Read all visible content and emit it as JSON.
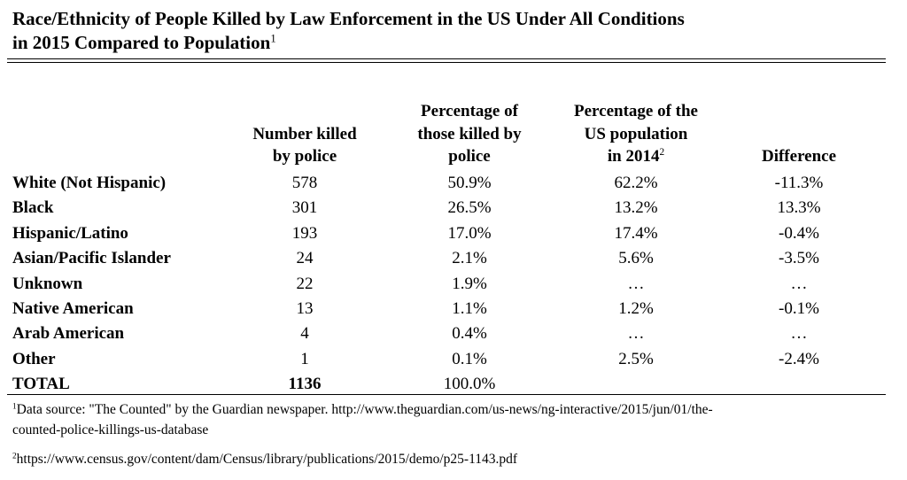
{
  "title": {
    "lines": [
      "Race/Ethnicity of People Killed by Law Enforcement in the US Under All Conditions",
      "in 2015 Compared to Population"
    ],
    "note": "1"
  },
  "table": {
    "header": [
      {
        "lines": [
          "Number killed",
          "by police"
        ]
      },
      {
        "lines": [
          "Percentage of",
          "those killed by",
          "police"
        ]
      },
      {
        "lines": [
          "Percentage of the",
          "US population",
          "in 2014"
        ],
        "note": "2"
      },
      {
        "lines": [
          "Difference"
        ]
      }
    ],
    "rows": [
      [
        "White (Not Hispanic)",
        "578",
        "50.9%",
        "62.2%",
        "-11.3%"
      ],
      [
        "Black",
        "301",
        "26.5%",
        "13.2%",
        "13.3%"
      ],
      [
        "Hispanic/Latino",
        "193",
        "17.0%",
        "17.4%",
        "-0.4%"
      ],
      [
        "Asian/Pacific Islander",
        "24",
        "2.1%",
        "5.6%",
        "-3.5%"
      ],
      [
        "Unknown",
        "22",
        "1.9%",
        "…",
        "…"
      ],
      [
        "Native American",
        "13",
        "1.1%",
        "1.2%",
        "-0.1%"
      ],
      [
        "Arab American",
        "4",
        "0.4%",
        "…",
        "…"
      ],
      [
        "Other",
        "1",
        "0.1%",
        "2.5%",
        "-2.4%"
      ]
    ],
    "total": [
      "TOTAL",
      "1136",
      "100.0%"
    ]
  },
  "footnotes": [
    {
      "marker": "1",
      "lines": [
        "Data source: \"The Counted\" by the Guardian newspaper. http://www.theguardian.com/us-news/ng-interactive/2015/jun/01/the-",
        "counted-police-killings-us-database"
      ]
    },
    {
      "marker": "2",
      "lines": [
        "https://www.census.gov/content/dam/Census/library/publications/2015/demo/p25-1143.pdf"
      ]
    }
  ]
}
